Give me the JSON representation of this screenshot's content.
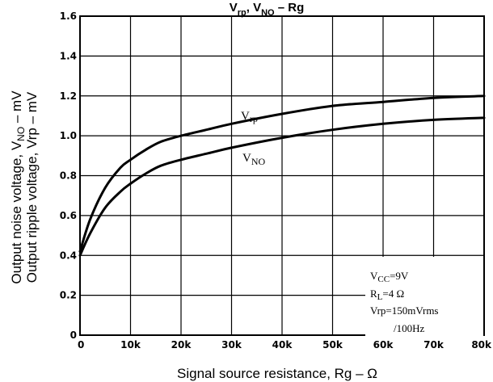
{
  "chart_data": {
    "type": "line",
    "title": {
      "part1": "V",
      "sub1": "rp",
      "part2": ", V",
      "sub2": "NO",
      "part3": " – Rg"
    },
    "xlabel": "Signal source resistance, Rg – Ω",
    "ylabel": {
      "line1_pre": "Output noise voltage, V",
      "line1_sub": "NO",
      "line1_post": " – mV",
      "line2": "Output ripple voltage, Vrp – mV"
    },
    "x_unit_note": "x in ohms (axis ticks in k)",
    "xlim": [
      0,
      80000
    ],
    "ylim": [
      0,
      1.6
    ],
    "x_ticks": [
      {
        "value": 0,
        "label": "0"
      },
      {
        "value": 10000,
        "label": "10k"
      },
      {
        "value": 20000,
        "label": "20k"
      },
      {
        "value": 30000,
        "label": "30k"
      },
      {
        "value": 40000,
        "label": "40k"
      },
      {
        "value": 50000,
        "label": "50k"
      },
      {
        "value": 60000,
        "label": "60k"
      },
      {
        "value": 70000,
        "label": "70k"
      },
      {
        "value": 80000,
        "label": "80k"
      }
    ],
    "y_ticks": [
      {
        "value": 0,
        "label": "0"
      },
      {
        "value": 0.2,
        "label": "0.2"
      },
      {
        "value": 0.4,
        "label": "0.4"
      },
      {
        "value": 0.6,
        "label": "0.6"
      },
      {
        "value": 0.8,
        "label": "0.8"
      },
      {
        "value": 1.0,
        "label": "1.0"
      },
      {
        "value": 1.2,
        "label": "1.2"
      },
      {
        "value": 1.4,
        "label": "1.4"
      },
      {
        "value": 1.6,
        "label": "1.6"
      }
    ],
    "grid": true,
    "series": [
      {
        "name": "Vrp",
        "label": {
          "main": "V",
          "sub": "rp"
        },
        "x": [
          0,
          2000,
          5000,
          8000,
          10000,
          13000,
          16000,
          20000,
          25000,
          30000,
          40000,
          50000,
          60000,
          70000,
          80000
        ],
        "y": [
          0.42,
          0.58,
          0.74,
          0.84,
          0.88,
          0.93,
          0.97,
          1.0,
          1.03,
          1.06,
          1.11,
          1.15,
          1.17,
          1.19,
          1.2
        ]
      },
      {
        "name": "VNO",
        "label": {
          "main": "V",
          "sub": "NO"
        },
        "x": [
          0,
          2000,
          5000,
          8000,
          10000,
          13000,
          16000,
          20000,
          25000,
          30000,
          40000,
          50000,
          60000,
          70000,
          80000
        ],
        "y": [
          0.4,
          0.51,
          0.64,
          0.72,
          0.76,
          0.81,
          0.85,
          0.88,
          0.91,
          0.94,
          0.99,
          1.03,
          1.06,
          1.08,
          1.09
        ]
      }
    ],
    "conditions": [
      {
        "main": "V",
        "sub": "CC",
        "rest": "=9V"
      },
      {
        "main": "R",
        "sub": "L",
        "rest": "=4 Ω"
      },
      {
        "main": "Vrp=150mVrms",
        "sub": "",
        "rest": ""
      },
      {
        "main": "/100Hz",
        "sub": "",
        "rest": ""
      }
    ]
  }
}
